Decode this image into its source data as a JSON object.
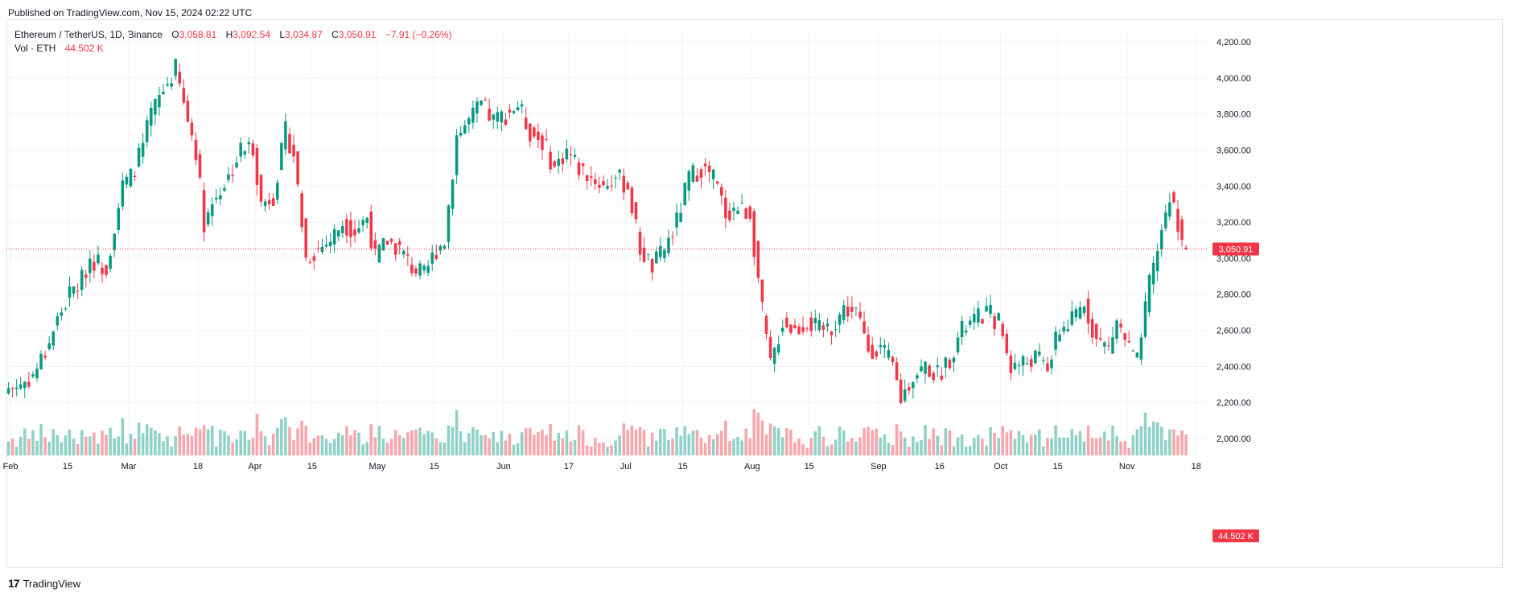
{
  "header": {
    "published": "Published on TradingView.com, Nov 15, 2024 02:22 UTC"
  },
  "legend": {
    "symbol": "Ethereum / TetherUS, 1D, Binance",
    "o_label": "O",
    "o_value": "3,058.81",
    "h_label": "H",
    "h_value": "3,092.54",
    "l_label": "L",
    "l_value": "3,034.87",
    "c_label": "C",
    "c_value": "3,050.91",
    "change": "−7.91 (−0.26%)",
    "vol_label": "Vol · ETH",
    "vol_value": "44.502 K"
  },
  "footer": {
    "logo": "17",
    "brand": "TradingView"
  },
  "colors": {
    "up": "#089981",
    "down": "#f23645",
    "vol_up": "#8fd1c6",
    "vol_down": "#f7a6ab",
    "grid": "#f0f3fa",
    "price_line": "#f23645",
    "axis_text": "#131722"
  },
  "chart_data": {
    "type": "candlestick",
    "title": "Ethereum / TetherUS, 1D, Binance",
    "last_price": 3050.91,
    "last_price_label": "3,050.91",
    "last_volume_label": "44.502 K",
    "price_axis": {
      "ticks": [
        2000,
        2200,
        2400,
        2600,
        2800,
        3000,
        3200,
        3400,
        3600,
        3800,
        4000,
        4200
      ],
      "tick_labels": [
        "2,000.00",
        "2,200.00",
        "2,400.00",
        "2,600.00",
        "2,800.00",
        "3,000.00",
        "3,200.00",
        "3,400.00",
        "3,600.00",
        "3,800.00",
        "4,000.00",
        "4,200.00"
      ],
      "range": [
        1900,
        4290
      ]
    },
    "time_axis": {
      "start_date": "2024-01-31",
      "end_date": "2024-11-15",
      "labels": [
        {
          "text": "Feb",
          "date": "2024-02-01"
        },
        {
          "text": "15",
          "date": "2024-02-15"
        },
        {
          "text": "Mar",
          "date": "2024-03-01"
        },
        {
          "text": "18",
          "date": "2024-03-18"
        },
        {
          "text": "Apr",
          "date": "2024-04-01"
        },
        {
          "text": "15",
          "date": "2024-04-15"
        },
        {
          "text": "May",
          "date": "2024-05-01"
        },
        {
          "text": "15",
          "date": "2024-05-15"
        },
        {
          "text": "Jun",
          "date": "2024-06-01"
        },
        {
          "text": "17",
          "date": "2024-06-17"
        },
        {
          "text": "Jul",
          "date": "2024-07-01"
        },
        {
          "text": "15",
          "date": "2024-07-15"
        },
        {
          "text": "Aug",
          "date": "2024-08-01"
        },
        {
          "text": "15",
          "date": "2024-08-15"
        },
        {
          "text": "Sep",
          "date": "2024-09-01"
        },
        {
          "text": "16",
          "date": "2024-09-16"
        },
        {
          "text": "Oct",
          "date": "2024-10-01"
        },
        {
          "text": "15",
          "date": "2024-10-15"
        },
        {
          "text": "Nov",
          "date": "2024-11-01"
        },
        {
          "text": "18",
          "date": "2024-11-18"
        }
      ]
    },
    "closes": [
      [
        "2024-01-31",
        2280
      ],
      [
        "2024-02-03",
        2300
      ],
      [
        "2024-02-06",
        2350
      ],
      [
        "2024-02-09",
        2480
      ],
      [
        "2024-02-12",
        2660
      ],
      [
        "2024-02-15",
        2800
      ],
      [
        "2024-02-18",
        2880
      ],
      [
        "2024-02-20",
        3000
      ],
      [
        "2024-02-24",
        2950
      ],
      [
        "2024-02-26",
        3180
      ],
      [
        "2024-02-28",
        3400
      ],
      [
        "2024-03-01",
        3450
      ],
      [
        "2024-03-04",
        3620
      ],
      [
        "2024-03-06",
        3800
      ],
      [
        "2024-03-09",
        3930
      ],
      [
        "2024-03-12",
        4050
      ],
      [
        "2024-03-14",
        3850
      ],
      [
        "2024-03-17",
        3600
      ],
      [
        "2024-03-19",
        3200
      ],
      [
        "2024-03-22",
        3350
      ],
      [
        "2024-03-25",
        3450
      ],
      [
        "2024-03-28",
        3600
      ],
      [
        "2024-03-31",
        3620
      ],
      [
        "2024-04-02",
        3300
      ],
      [
        "2024-04-05",
        3350
      ],
      [
        "2024-04-08",
        3700
      ],
      [
        "2024-04-10",
        3580
      ],
      [
        "2024-04-13",
        3000
      ],
      [
        "2024-04-16",
        3050
      ],
      [
        "2024-04-19",
        3100
      ],
      [
        "2024-04-22",
        3200
      ],
      [
        "2024-04-25",
        3150
      ],
      [
        "2024-04-28",
        3230
      ],
      [
        "2024-04-30",
        3000
      ],
      [
        "2024-05-03",
        3100
      ],
      [
        "2024-05-06",
        3050
      ],
      [
        "2024-05-09",
        2950
      ],
      [
        "2024-05-12",
        2900
      ],
      [
        "2024-05-15",
        3050
      ],
      [
        "2024-05-17",
        3100
      ],
      [
        "2024-05-20",
        3680
      ],
      [
        "2024-05-23",
        3760
      ],
      [
        "2024-05-26",
        3850
      ],
      [
        "2024-05-29",
        3760
      ],
      [
        "2024-06-01",
        3800
      ],
      [
        "2024-06-04",
        3850
      ],
      [
        "2024-06-07",
        3700
      ],
      [
        "2024-06-10",
        3650
      ],
      [
        "2024-06-13",
        3500
      ],
      [
        "2024-06-16",
        3600
      ],
      [
        "2024-06-19",
        3500
      ],
      [
        "2024-06-22",
        3450
      ],
      [
        "2024-06-25",
        3400
      ],
      [
        "2024-06-28",
        3450
      ],
      [
        "2024-07-01",
        3400
      ],
      [
        "2024-07-04",
        3050
      ],
      [
        "2024-07-07",
        2950
      ],
      [
        "2024-07-10",
        3050
      ],
      [
        "2024-07-13",
        3200
      ],
      [
        "2024-07-16",
        3450
      ],
      [
        "2024-07-19",
        3500
      ],
      [
        "2024-07-22",
        3450
      ],
      [
        "2024-07-25",
        3250
      ],
      [
        "2024-07-28",
        3280
      ],
      [
        "2024-07-31",
        3250
      ],
      [
        "2024-08-03",
        2700
      ],
      [
        "2024-08-05",
        2400
      ],
      [
        "2024-08-08",
        2650
      ],
      [
        "2024-08-11",
        2600
      ],
      [
        "2024-08-14",
        2650
      ],
      [
        "2024-08-17",
        2600
      ],
      [
        "2024-08-20",
        2620
      ],
      [
        "2024-08-23",
        2720
      ],
      [
        "2024-08-26",
        2700
      ],
      [
        "2024-08-29",
        2500
      ],
      [
        "2024-09-01",
        2500
      ],
      [
        "2024-09-04",
        2400
      ],
      [
        "2024-09-06",
        2220
      ],
      [
        "2024-09-09",
        2350
      ],
      [
        "2024-09-12",
        2400
      ],
      [
        "2024-09-15",
        2350
      ],
      [
        "2024-09-18",
        2450
      ],
      [
        "2024-09-21",
        2600
      ],
      [
        "2024-09-24",
        2650
      ],
      [
        "2024-09-27",
        2700
      ],
      [
        "2024-09-30",
        2650
      ],
      [
        "2024-10-03",
        2400
      ],
      [
        "2024-10-06",
        2420
      ],
      [
        "2024-10-09",
        2450
      ],
      [
        "2024-10-12",
        2400
      ],
      [
        "2024-10-15",
        2600
      ],
      [
        "2024-10-18",
        2650
      ],
      [
        "2024-10-21",
        2750
      ],
      [
        "2024-10-24",
        2550
      ],
      [
        "2024-10-27",
        2500
      ],
      [
        "2024-10-29",
        2650
      ],
      [
        "2024-11-01",
        2500
      ],
      [
        "2024-11-03",
        2420
      ],
      [
        "2024-11-06",
        2850
      ],
      [
        "2024-11-09",
        3150
      ],
      [
        "2024-11-11",
        3350
      ],
      [
        "2024-11-13",
        3200
      ],
      [
        "2024-11-15",
        3050.91
      ]
    ]
  }
}
